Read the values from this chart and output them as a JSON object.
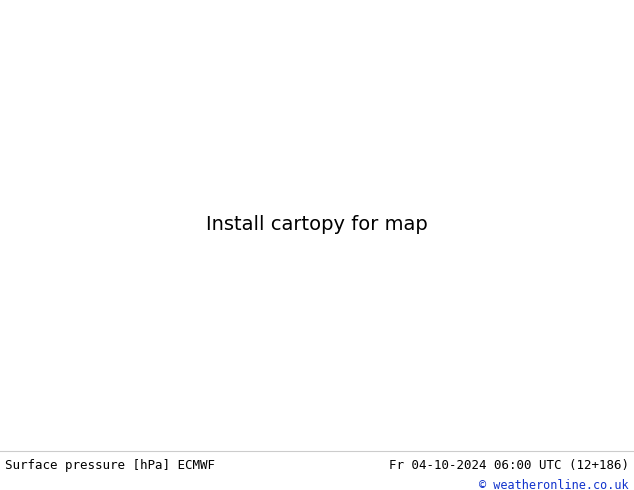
{
  "title_left": "Surface pressure [hPa] ECMWF",
  "title_right": "Fr 04-10-2024 06:00 UTC (12+186)",
  "copyright": "© weatheronline.co.uk",
  "bg_color": "#ffffff",
  "ocean_color": "#c8ddf0",
  "land_color": "#b8ddb0",
  "gray_land_color": "#aaaaaa",
  "text_color": "#000000",
  "blue_contour_color": "#0000dd",
  "red_contour_color": "#dd0000",
  "black_contour_color": "#000000",
  "font_size_bottom": 9,
  "fig_width": 6.34,
  "fig_height": 4.9,
  "dpi": 100,
  "lon_min": -175,
  "lon_max": -40,
  "lat_min": 10,
  "lat_max": 80
}
